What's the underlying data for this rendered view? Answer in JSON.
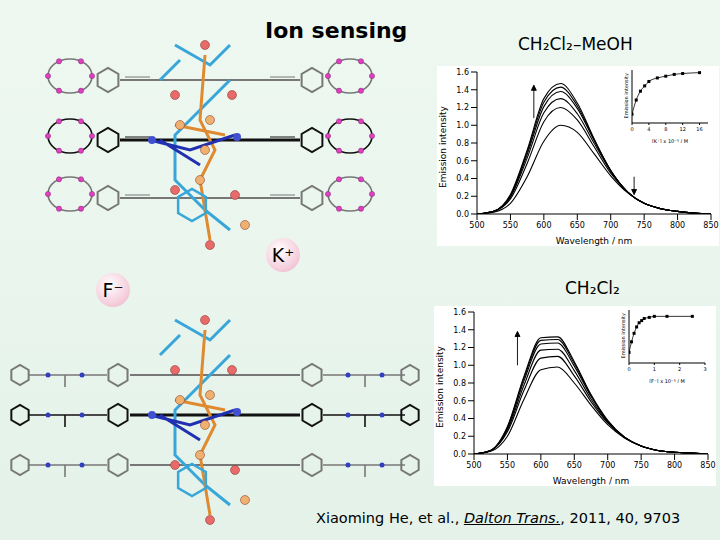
{
  "slide": {
    "title": "Ion sensing",
    "ions": [
      "K⁺",
      "F⁻"
    ],
    "citation": {
      "authors": "Xiaoming He, et al.,",
      "journal": "Dalton Trans.",
      "details": ", 2011, 40, 9703"
    }
  },
  "chart_data": [
    {
      "type": "line",
      "title": "CH₂Cl₂–MeOH",
      "x_label": "Wavelength / nm",
      "y_label": "Emission intensity",
      "x": [
        500,
        525,
        550,
        575,
        600,
        625,
        650,
        675,
        700,
        725,
        750,
        775,
        800,
        825,
        850
      ],
      "xlim": [
        500,
        850
      ],
      "xticks": [
        500,
        550,
        600,
        650,
        700,
        750,
        800,
        850
      ],
      "ylim": [
        0,
        1.6
      ],
      "yticks": [
        {
          "value": 0,
          "label": "0.0"
        },
        {
          "value": 0.2,
          "label": "0.2"
        },
        {
          "value": 0.4,
          "label": "0.4"
        },
        {
          "value": 0.6,
          "label": "0.6"
        },
        {
          "value": 0.8,
          "label": "0.8"
        },
        {
          "value": 1,
          "label": "1.0"
        },
        {
          "value": 1.2,
          "label": "1.2"
        },
        {
          "value": 1.4,
          "label": "1.4"
        },
        {
          "value": 1.6,
          "label": "1.6"
        }
      ],
      "grid": false,
      "series": [
        {
          "color": "#000000",
          "values": [
            0,
            0.02,
            0.12,
            0.42,
            0.82,
            1.0,
            0.92,
            0.68,
            0.43,
            0.24,
            0.12,
            0.06,
            0.03,
            0.01,
            0
          ]
        },
        {
          "color": "#000000",
          "values": [
            0,
            0.03,
            0.17,
            0.57,
            1.04,
            1.2,
            1.06,
            0.76,
            0.46,
            0.25,
            0.12,
            0.06,
            0.03,
            0.01,
            0
          ]
        },
        {
          "color": "#000000",
          "values": [
            0,
            0.03,
            0.19,
            0.63,
            1.14,
            1.3,
            1.13,
            0.8,
            0.48,
            0.25,
            0.12,
            0.06,
            0.03,
            0.01,
            0
          ]
        },
        {
          "color": "#000000",
          "values": [
            0,
            0.03,
            0.2,
            0.67,
            1.21,
            1.38,
            1.19,
            0.83,
            0.49,
            0.25,
            0.12,
            0.06,
            0.03,
            0.01,
            0
          ]
        },
        {
          "color": "#000000",
          "values": [
            0,
            0.03,
            0.21,
            0.7,
            1.26,
            1.43,
            1.22,
            0.84,
            0.49,
            0.25,
            0.12,
            0.06,
            0.03,
            0.01,
            0
          ]
        },
        {
          "color": "#000000",
          "values": [
            0,
            0.03,
            0.22,
            0.72,
            1.3,
            1.47,
            1.25,
            0.85,
            0.49,
            0.25,
            0.12,
            0.06,
            0.03,
            0.01,
            0
          ]
        }
      ]
    },
    {
      "type": "line",
      "x_label": "[K⁺] x 10⁻⁵ / M",
      "y_label": "Emission intensity",
      "x": [
        0,
        1,
        2,
        3,
        4,
        6,
        8,
        10,
        12,
        16
      ],
      "values": [
        1.0,
        1.16,
        1.26,
        1.32,
        1.37,
        1.41,
        1.43,
        1.45,
        1.46,
        1.47
      ],
      "xlim": [
        0,
        18
      ],
      "xticks": [
        0,
        4,
        8,
        12,
        16
      ],
      "ylim": [
        0.9,
        1.5
      ],
      "tick_labels": "x",
      "marker": "square",
      "line_style": "solid",
      "color": "#000000",
      "grid": false
    },
    {
      "type": "line",
      "title": "CH₂Cl₂",
      "x_label": "Wavelength / nm",
      "y_label": "Emission intensity",
      "x": [
        500,
        525,
        550,
        575,
        600,
        625,
        650,
        675,
        700,
        725,
        750,
        775,
        800,
        825,
        850
      ],
      "xlim": [
        500,
        850
      ],
      "xticks": [
        500,
        550,
        600,
        650,
        700,
        750,
        800,
        850
      ],
      "ylim": [
        0,
        1.6
      ],
      "yticks": [
        {
          "value": 0,
          "label": "0.0"
        },
        {
          "value": 0.2,
          "label": "0.2"
        },
        {
          "value": 0.4,
          "label": "0.4"
        },
        {
          "value": 0.6,
          "label": "0.6"
        },
        {
          "value": 0.8,
          "label": "0.8"
        },
        {
          "value": 1,
          "label": "1.0"
        },
        {
          "value": 1.2,
          "label": "1.2"
        },
        {
          "value": 1.4,
          "label": "1.4"
        },
        {
          "value": 1.6,
          "label": "1.6"
        }
      ],
      "grid": false,
      "series": [
        {
          "color": "#000000",
          "values": [
            0,
            0.03,
            0.2,
            0.62,
            0.95,
            0.98,
            0.8,
            0.55,
            0.33,
            0.18,
            0.09,
            0.04,
            0.02,
            0.01,
            0
          ]
        },
        {
          "color": "#000000",
          "values": [
            0,
            0.04,
            0.25,
            0.72,
            1.08,
            1.1,
            0.88,
            0.59,
            0.35,
            0.19,
            0.09,
            0.04,
            0.02,
            0.01,
            0
          ]
        },
        {
          "color": "#000000",
          "values": [
            0,
            0.04,
            0.27,
            0.78,
            1.17,
            1.18,
            0.94,
            0.62,
            0.36,
            0.19,
            0.09,
            0.04,
            0.02,
            0.01,
            0
          ]
        },
        {
          "color": "#000000",
          "values": [
            0,
            0.04,
            0.29,
            0.83,
            1.24,
            1.25,
            0.99,
            0.65,
            0.37,
            0.19,
            0.09,
            0.04,
            0.02,
            0.01,
            0
          ]
        },
        {
          "color": "#000000",
          "values": [
            0,
            0.04,
            0.3,
            0.86,
            1.28,
            1.29,
            1.02,
            0.66,
            0.37,
            0.19,
            0.09,
            0.04,
            0.02,
            0.01,
            0
          ]
        },
        {
          "color": "#000000",
          "values": [
            0,
            0.04,
            0.31,
            0.88,
            1.31,
            1.32,
            1.04,
            0.67,
            0.38,
            0.19,
            0.09,
            0.04,
            0.02,
            0.01,
            0
          ]
        }
      ]
    },
    {
      "type": "line",
      "x_label": "[F⁻] x 10⁻⁵ / M",
      "y_label": "Emission intensity",
      "x": [
        0,
        0.1,
        0.2,
        0.3,
        0.4,
        0.5,
        0.6,
        0.8,
        1.0,
        1.5,
        2.5
      ],
      "values": [
        1.0,
        1.1,
        1.18,
        1.24,
        1.28,
        1.3,
        1.32,
        1.33,
        1.34,
        1.34,
        1.34
      ],
      "xlim": [
        0,
        3
      ],
      "xticks": [
        0,
        1,
        2,
        3
      ],
      "ylim": [
        0.9,
        1.4
      ],
      "tick_labels": "x",
      "marker": "square",
      "line_style": "solid",
      "color": "#000000",
      "grid": false
    }
  ]
}
